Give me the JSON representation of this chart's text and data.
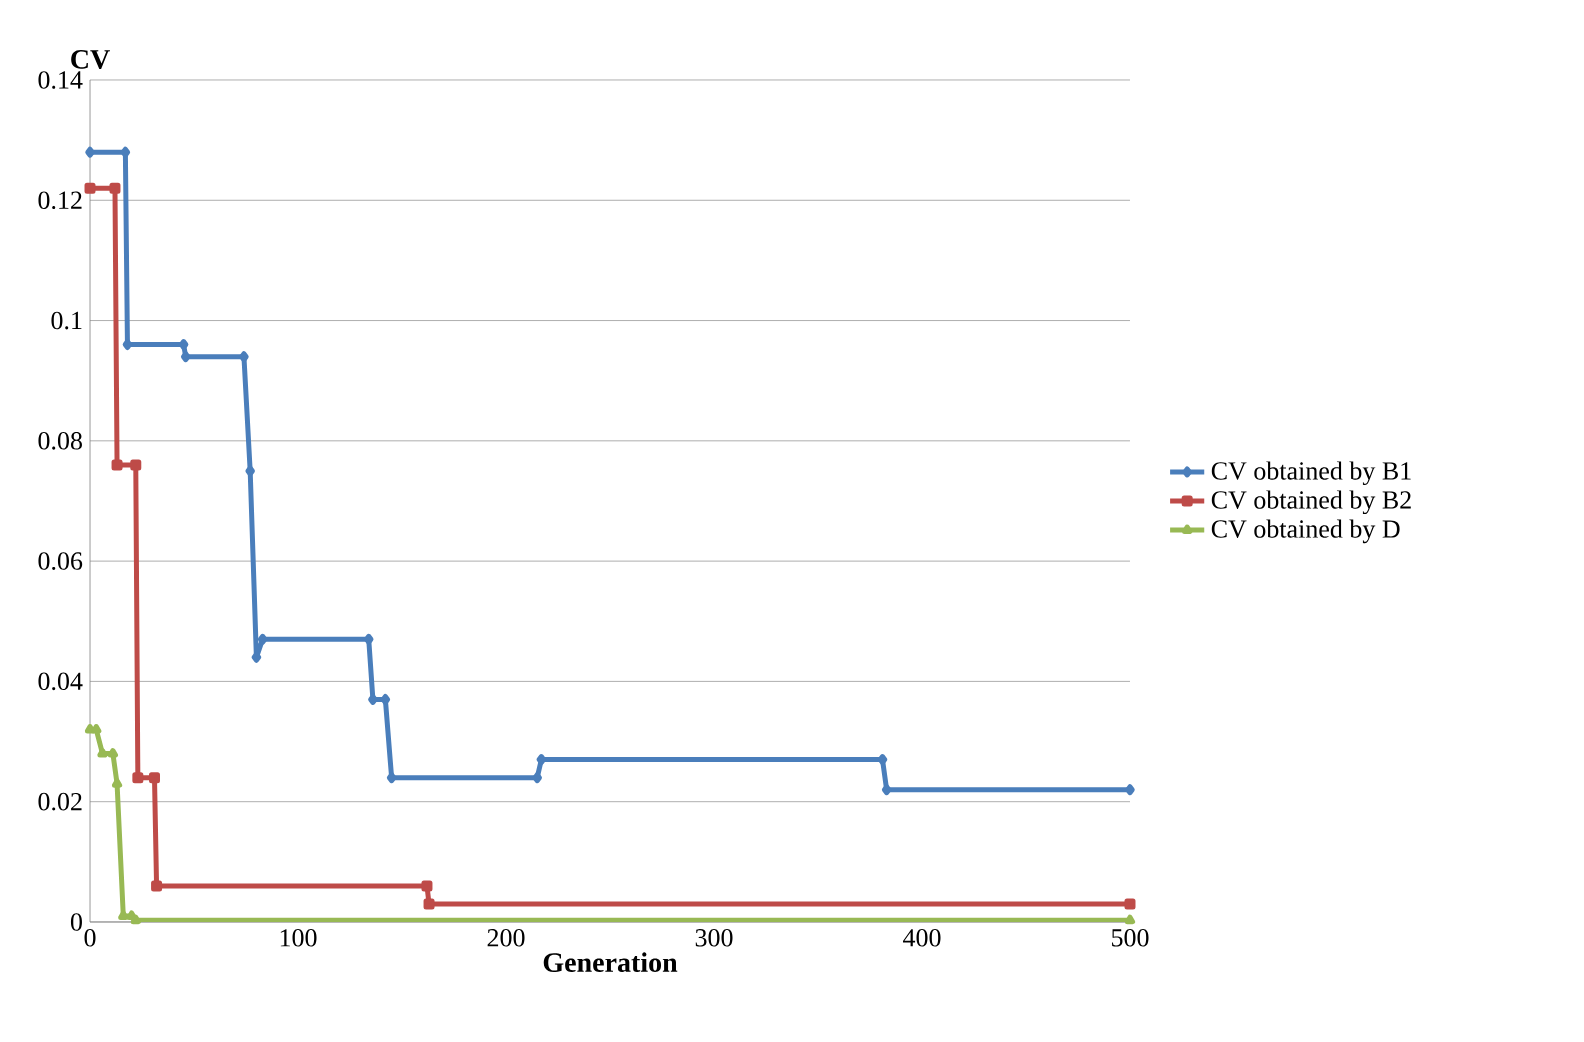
{
  "chart_data": {
    "type": "line",
    "ylabel": "CV",
    "xlabel": "Generation",
    "xlim": [
      0,
      500
    ],
    "ylim": [
      0,
      0.14
    ],
    "xticks": [
      0,
      100,
      200,
      300,
      400,
      500
    ],
    "yticks": [
      0,
      0.02,
      0.04,
      0.06,
      0.08,
      0.1,
      0.12,
      0.14
    ],
    "grid": "y",
    "legend": "right",
    "line_style": "solid",
    "series": [
      {
        "name": "CV obtained by B1",
        "color": "#4a7ebb",
        "marker": "diamond",
        "x": [
          0,
          17,
          18,
          45,
          46,
          74,
          77,
          80,
          83,
          134,
          136,
          142,
          145,
          215,
          217,
          381,
          383,
          500
        ],
        "values": [
          0.128,
          0.128,
          0.096,
          0.096,
          0.094,
          0.094,
          0.075,
          0.044,
          0.047,
          0.047,
          0.037,
          0.037,
          0.024,
          0.024,
          0.027,
          0.027,
          0.022,
          0.022
        ]
      },
      {
        "name": "CV obtained by B2",
        "color": "#be4b48",
        "marker": "square",
        "x": [
          0,
          12,
          13,
          22,
          23,
          31,
          32,
          162,
          163,
          500
        ],
        "values": [
          0.122,
          0.122,
          0.076,
          0.076,
          0.024,
          0.024,
          0.006,
          0.006,
          0.003,
          0.003
        ]
      },
      {
        "name": "CV obtained by D",
        "color": "#98b954",
        "marker": "triangle",
        "x": [
          0,
          3,
          6,
          11,
          13,
          16,
          20,
          22,
          500
        ],
        "values": [
          0.032,
          0.032,
          0.028,
          0.028,
          0.023,
          0.001,
          0.001,
          0.0003,
          0.0003
        ]
      }
    ]
  }
}
